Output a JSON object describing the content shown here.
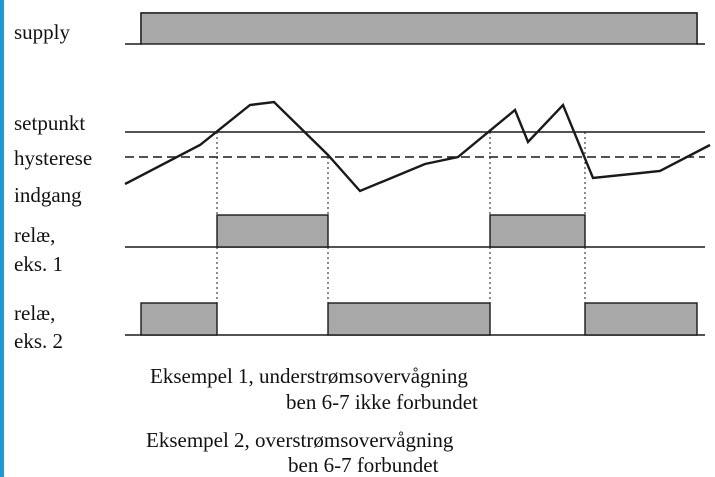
{
  "labels": {
    "supply": "supply",
    "setpunkt": "setpunkt",
    "hysterese": "hysterese",
    "indgang": "indgang",
    "relay1_line1": "relæ,",
    "relay1_line2": "eks. 1",
    "relay2_line1": "relæ,",
    "relay2_line2": "eks. 2"
  },
  "captions": {
    "ex1_line1": "Eksempel 1, understrømsovervågning",
    "ex1_line2": "ben 6-7 ikke forbundet",
    "ex2_line1": "Eksempel 2, overstrømsovervågning",
    "ex2_line2": "ben 6-7 forbundet"
  },
  "colors": {
    "signal_fill": "#a8a8a8",
    "line": "#1a1a1a",
    "accent_stripe": "#1d9ad6"
  }
}
